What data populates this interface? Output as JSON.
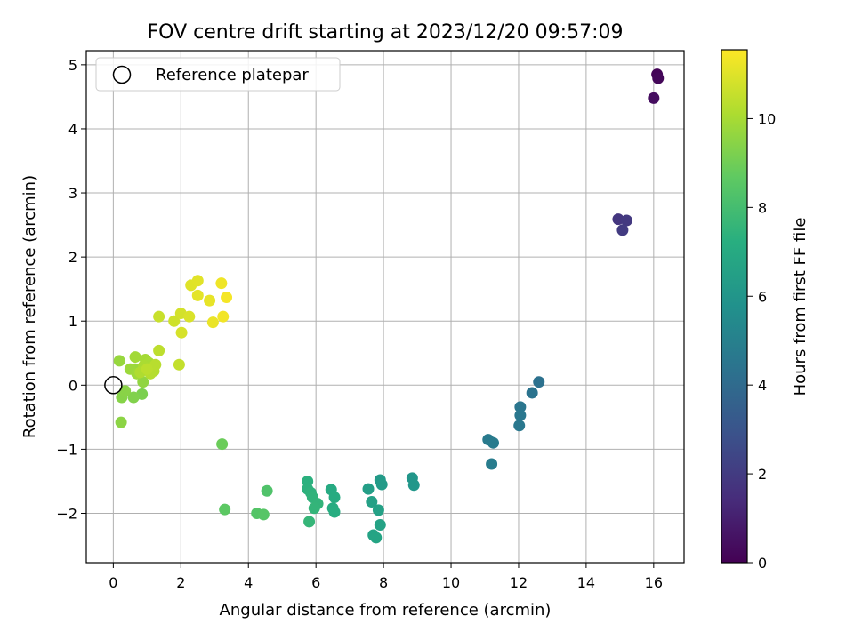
{
  "chart_data": {
    "type": "scatter",
    "title": "FOV centre drift starting at 2023/12/20 09:57:09",
    "xlabel": "Angular distance from reference (arcmin)",
    "ylabel": "Rotation from reference (arcmin)",
    "xlim": [
      -0.8,
      16.9
    ],
    "ylim": [
      -2.77,
      5.22
    ],
    "xticks": [
      0,
      2,
      4,
      6,
      8,
      10,
      12,
      14,
      16
    ],
    "yticks": [
      -2,
      -1,
      0,
      1,
      2,
      3,
      4,
      5
    ],
    "grid": true,
    "legend": {
      "position": "top-left",
      "entries": [
        "Reference platepar"
      ]
    },
    "reference_point": {
      "x": 0,
      "y": 0
    },
    "colorbar": {
      "label": "Hours from first FF file",
      "min": 0,
      "max": 11.55,
      "ticks": [
        0,
        2,
        4,
        6,
        8,
        10
      ],
      "colormap": "viridis"
    },
    "series": [
      {
        "points": [
          {
            "x": 16.1,
            "y": 4.85,
            "h": 0.1
          },
          {
            "x": 16.13,
            "y": 4.79,
            "h": 0.2
          },
          {
            "x": 16.0,
            "y": 4.48,
            "h": 0.4
          },
          {
            "x": 14.95,
            "y": 2.59,
            "h": 1.8
          },
          {
            "x": 15.2,
            "y": 2.57,
            "h": 1.9
          },
          {
            "x": 15.08,
            "y": 2.42,
            "h": 2.0
          },
          {
            "x": 12.6,
            "y": 0.05,
            "h": 4.3
          },
          {
            "x": 12.4,
            "y": -0.12,
            "h": 4.4
          },
          {
            "x": 12.05,
            "y": -0.34,
            "h": 4.5
          },
          {
            "x": 12.05,
            "y": -0.47,
            "h": 4.55
          },
          {
            "x": 12.02,
            "y": -0.63,
            "h": 4.6
          },
          {
            "x": 11.1,
            "y": -0.85,
            "h": 4.7
          },
          {
            "x": 11.25,
            "y": -0.9,
            "h": 4.75
          },
          {
            "x": 11.2,
            "y": -1.23,
            "h": 4.8
          },
          {
            "x": 8.85,
            "y": -1.45,
            "h": 6.0
          },
          {
            "x": 8.9,
            "y": -1.56,
            "h": 6.05
          },
          {
            "x": 7.9,
            "y": -1.48,
            "h": 6.2
          },
          {
            "x": 7.95,
            "y": -1.55,
            "h": 6.25
          },
          {
            "x": 7.55,
            "y": -1.62,
            "h": 6.4
          },
          {
            "x": 7.65,
            "y": -1.82,
            "h": 6.5
          },
          {
            "x": 7.85,
            "y": -1.95,
            "h": 6.55
          },
          {
            "x": 7.9,
            "y": -2.18,
            "h": 6.6
          },
          {
            "x": 7.7,
            "y": -2.34,
            "h": 6.65
          },
          {
            "x": 7.78,
            "y": -2.38,
            "h": 6.7
          },
          {
            "x": 6.45,
            "y": -1.63,
            "h": 7.0
          },
          {
            "x": 6.55,
            "y": -1.75,
            "h": 7.05
          },
          {
            "x": 6.5,
            "y": -1.92,
            "h": 7.1
          },
          {
            "x": 6.55,
            "y": -1.98,
            "h": 7.15
          },
          {
            "x": 5.75,
            "y": -1.5,
            "h": 7.3
          },
          {
            "x": 5.75,
            "y": -1.62,
            "h": 7.35
          },
          {
            "x": 5.85,
            "y": -1.68,
            "h": 7.4
          },
          {
            "x": 5.9,
            "y": -1.75,
            "h": 7.45
          },
          {
            "x": 6.05,
            "y": -1.85,
            "h": 7.5
          },
          {
            "x": 5.95,
            "y": -1.92,
            "h": 7.55
          },
          {
            "x": 5.8,
            "y": -2.13,
            "h": 7.6
          },
          {
            "x": 4.55,
            "y": -1.65,
            "h": 8.3
          },
          {
            "x": 4.25,
            "y": -2.0,
            "h": 8.4
          },
          {
            "x": 4.45,
            "y": -2.02,
            "h": 8.45
          },
          {
            "x": 3.3,
            "y": -1.94,
            "h": 8.6
          },
          {
            "x": 3.22,
            "y": -0.92,
            "h": 8.9
          },
          {
            "x": 0.85,
            "y": -0.14,
            "h": 9.2
          },
          {
            "x": 0.6,
            "y": -0.19,
            "h": 9.3
          },
          {
            "x": 0.25,
            "y": -0.19,
            "h": 9.4
          },
          {
            "x": 0.35,
            "y": -0.09,
            "h": 9.45
          },
          {
            "x": 0.23,
            "y": -0.58,
            "h": 9.5
          },
          {
            "x": 0.88,
            "y": 0.05,
            "h": 9.6
          },
          {
            "x": 0.18,
            "y": 0.38,
            "h": 9.7
          },
          {
            "x": 0.65,
            "y": 0.25,
            "h": 9.75
          },
          {
            "x": 0.5,
            "y": 0.25,
            "h": 9.8
          },
          {
            "x": 0.7,
            "y": 0.18,
            "h": 9.85
          },
          {
            "x": 0.65,
            "y": 0.44,
            "h": 9.9
          },
          {
            "x": 0.95,
            "y": 0.4,
            "h": 9.95
          },
          {
            "x": 1.05,
            "y": 0.35,
            "h": 10.0
          },
          {
            "x": 0.9,
            "y": 0.3,
            "h": 10.05
          },
          {
            "x": 1.15,
            "y": 0.28,
            "h": 10.1
          },
          {
            "x": 0.8,
            "y": 0.2,
            "h": 10.15
          },
          {
            "x": 1.2,
            "y": 0.22,
            "h": 10.2
          },
          {
            "x": 1.1,
            "y": 0.18,
            "h": 10.25
          },
          {
            "x": 1.25,
            "y": 0.32,
            "h": 10.3
          },
          {
            "x": 1.0,
            "y": 0.25,
            "h": 10.35
          },
          {
            "x": 1.35,
            "y": 0.54,
            "h": 10.4
          },
          {
            "x": 1.95,
            "y": 0.32,
            "h": 10.5
          },
          {
            "x": 1.35,
            "y": 1.07,
            "h": 10.6
          },
          {
            "x": 1.8,
            "y": 1.0,
            "h": 10.7
          },
          {
            "x": 2.0,
            "y": 1.12,
            "h": 10.8
          },
          {
            "x": 2.02,
            "y": 0.82,
            "h": 10.85
          },
          {
            "x": 2.25,
            "y": 1.07,
            "h": 10.9
          },
          {
            "x": 2.3,
            "y": 1.56,
            "h": 11.0
          },
          {
            "x": 2.5,
            "y": 1.63,
            "h": 11.05
          },
          {
            "x": 2.5,
            "y": 1.4,
            "h": 11.1
          },
          {
            "x": 2.85,
            "y": 1.32,
            "h": 11.15
          },
          {
            "x": 2.95,
            "y": 0.98,
            "h": 11.2
          },
          {
            "x": 3.2,
            "y": 1.59,
            "h": 11.3
          },
          {
            "x": 3.25,
            "y": 1.07,
            "h": 11.35
          },
          {
            "x": 3.35,
            "y": 1.37,
            "h": 11.4
          }
        ]
      }
    ]
  }
}
